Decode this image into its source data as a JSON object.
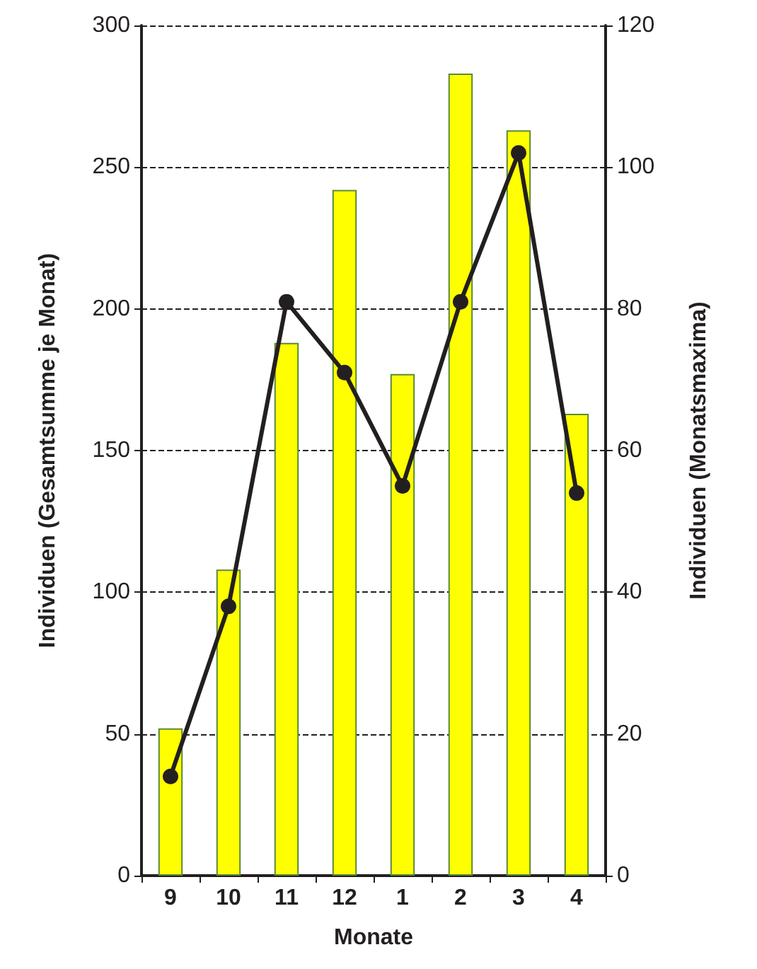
{
  "chart_data": {
    "type": "bar",
    "xlabel": "Monate",
    "ylabel": "Individuen (Gesamtsumme je Monat)",
    "y2label": "Individuen (Monatsmaxima)",
    "categories": [
      "9",
      "10",
      "11",
      "12",
      "1",
      "2",
      "3",
      "4"
    ],
    "series": [
      {
        "color": "#ffff00",
        "values": [
          52,
          108,
          188,
          242,
          177,
          283,
          263,
          163
        ]
      },
      {
        "type": "line",
        "axis": "y2",
        "color": "#231f20",
        "marker": "circle",
        "line_style": "solid",
        "values": [
          14,
          38,
          81,
          71,
          55,
          81,
          102,
          54
        ]
      }
    ],
    "ylim": [
      0,
      300
    ],
    "yticks": [
      0,
      50,
      100,
      150,
      200,
      250,
      300
    ],
    "y2lim": [
      0,
      120
    ],
    "y2ticks": [
      0,
      20,
      40,
      60,
      80,
      100,
      120
    ],
    "grid": "y"
  }
}
